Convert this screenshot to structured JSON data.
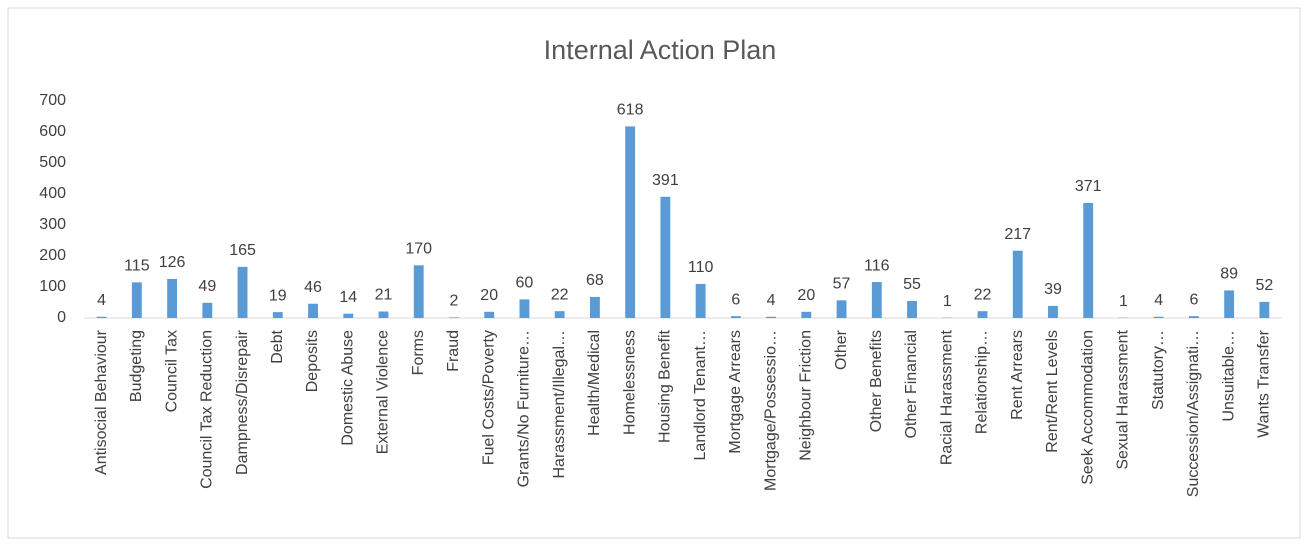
{
  "chart_data": {
    "type": "bar",
    "title": "Internal Action Plan",
    "categories": [
      "Antisocial Behaviour",
      "Budgeting",
      "Council Tax",
      "Council Tax Reduction",
      "Dampness/Disrepair",
      "Debt",
      "Deposits",
      "Domestic Abuse",
      "External Violence",
      "Forms",
      "Fraud",
      "Fuel Costs/Poverty",
      "Grants/No Furniture…",
      "Harassment/Illegal…",
      "Health/Medical",
      "Homelessness",
      "Housing Benefit",
      "Landlord Tenant…",
      "Mortgage Arrears",
      "Mortgage/Possessio…",
      "Neighbour Friction",
      "Other",
      "Other Benefits",
      "Other Financial",
      "Racial Harassment",
      "Relationship…",
      "Rent Arrears",
      "Rent/Rent Levels",
      "Seek Accommodation",
      "Sexual Harassment",
      "Statutory…",
      "Succession/Assignati…",
      "Unsuitable…",
      "Wants Transfer"
    ],
    "values": [
      4,
      115,
      126,
      49,
      165,
      19,
      46,
      14,
      21,
      170,
      2,
      20,
      60,
      22,
      68,
      618,
      391,
      110,
      6,
      4,
      20,
      57,
      116,
      55,
      1,
      22,
      217,
      39,
      371,
      1,
      4,
      6,
      89,
      52
    ],
    "color": "#5b9bd5",
    "ylim": [
      0,
      700
    ],
    "yticks": [
      0,
      100,
      200,
      300,
      400,
      500,
      600,
      700
    ],
    "grid": false
  }
}
